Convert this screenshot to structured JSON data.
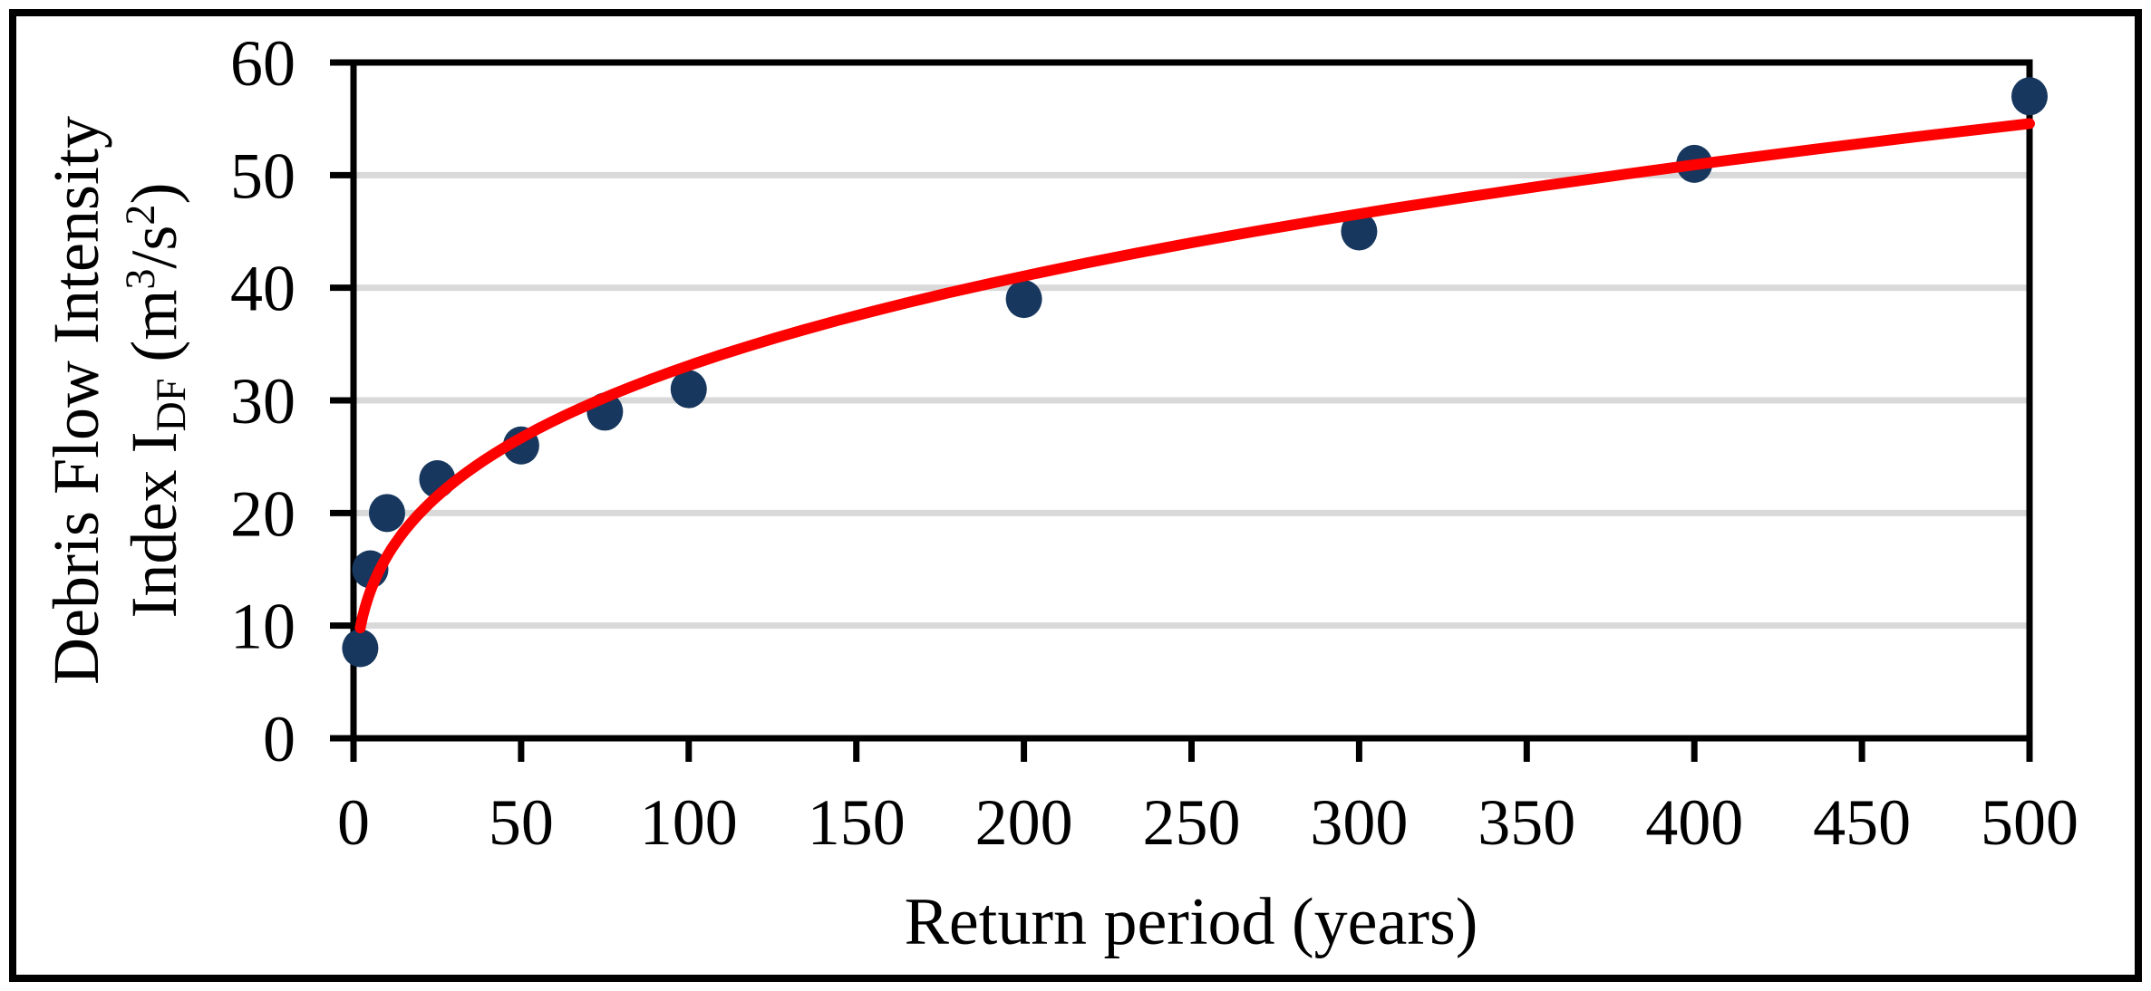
{
  "figure": {
    "background": "#FFFFFF",
    "border_color": "#000000"
  },
  "chart_data": {
    "type": "scatter",
    "title": "",
    "xlabel": "Return period (years)",
    "ylabel_lines": {
      "line1": "Debris Flow Intensity",
      "line2_pre": "Index I",
      "line2_sub": "DF",
      "line2_mid": " (m",
      "line2_sup_m": "3",
      "line2_mid2": "/s",
      "line2_sup_s": "2",
      "line2_end": ")"
    },
    "xlim": [
      0,
      500
    ],
    "ylim": [
      0,
      60
    ],
    "x_ticks": [
      0,
      50,
      100,
      150,
      200,
      250,
      300,
      350,
      400,
      450,
      500
    ],
    "y_ticks": [
      0,
      10,
      20,
      30,
      40,
      50,
      60
    ],
    "grid": "horizontal-only",
    "legend": "none",
    "series": [
      {
        "name": "debris-flow-intensity-observations",
        "type": "scatter",
        "marker": "circle",
        "color": "#17375E",
        "x": [
          2,
          5,
          10,
          25,
          50,
          75,
          100,
          200,
          300,
          400,
          500
        ],
        "y": [
          8,
          15,
          20,
          23,
          26,
          29,
          31,
          39,
          45,
          51,
          57
        ]
      },
      {
        "name": "fitted-trendline",
        "type": "power",
        "color": "#FF0000",
        "equation": "y = 7.9 * x^0.311",
        "coefficient": 7.9,
        "exponent": 0.311,
        "x_start": 2,
        "x_end": 500
      }
    ],
    "colors": {
      "point": "#17375E",
      "trendline": "#FF0000",
      "gridline": "#D9D9D9",
      "axis": "#000000",
      "background": "#FFFFFF"
    }
  }
}
